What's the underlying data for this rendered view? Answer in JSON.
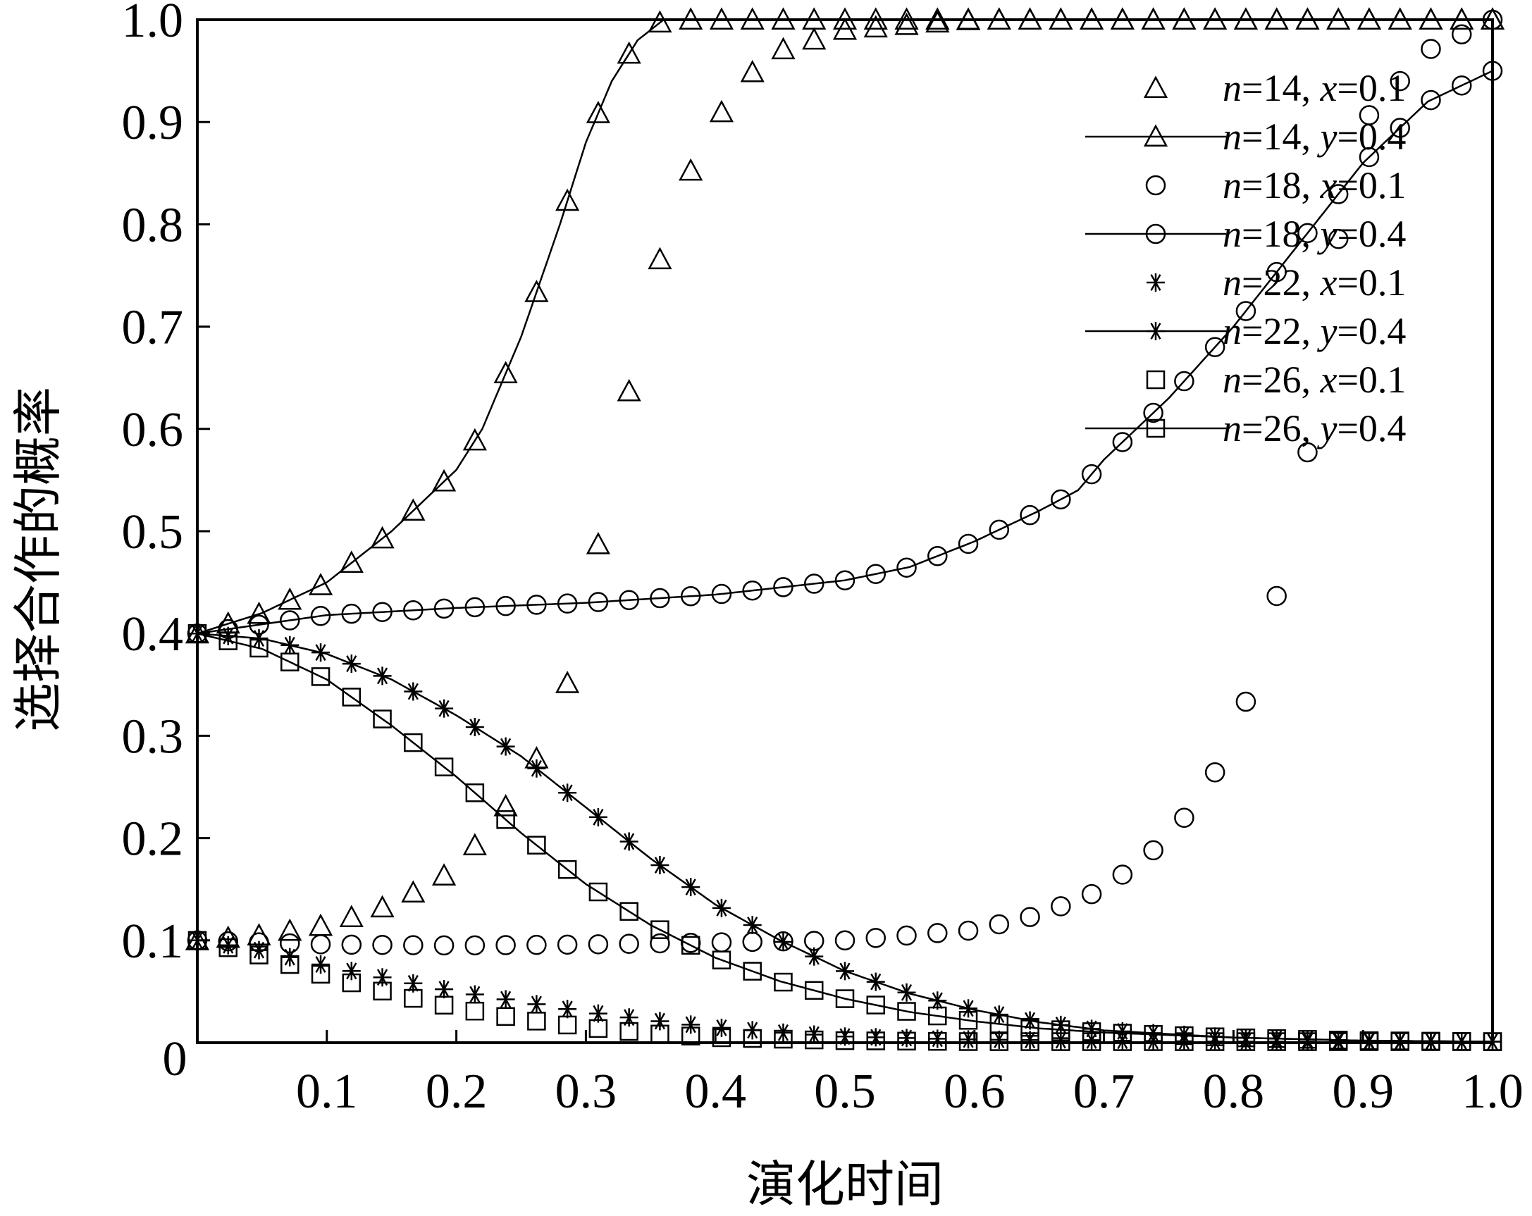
{
  "chart_data": {
    "type": "line",
    "xlabel": "演化时间",
    "ylabel": "选择合作的概率",
    "xlim": [
      0,
      1
    ],
    "ylim": [
      0,
      1
    ],
    "x_tick_labels": [
      "0.1",
      "0.2",
      "0.3",
      "0.4",
      "0.5",
      "0.6",
      "0.7",
      "0.8",
      "0.9",
      "1.0"
    ],
    "y_tick_labels": [
      "0.1",
      "0.2",
      "0.3",
      "0.4",
      "0.5",
      "0.6",
      "0.7",
      "0.8",
      "0.9",
      "1.0"
    ],
    "origin_label": "0",
    "grid": false,
    "legend_position": "top-right",
    "series": [
      {
        "name": "n=14, x=0.1",
        "legend": {
          "prefix": "n",
          "mid": "=14, ",
          "var": "x",
          "suffix": "=0.1"
        },
        "marker": "triangle",
        "line": false,
        "x": [
          0,
          0.05,
          0.1,
          0.15,
          0.2,
          0.25,
          0.28,
          0.3,
          0.32,
          0.34,
          0.36,
          0.38,
          0.4,
          0.42,
          0.45,
          0.5,
          0.6,
          0.7,
          0.8,
          0.9,
          1.0
        ],
        "y": [
          0.1,
          0.105,
          0.115,
          0.135,
          0.17,
          0.25,
          0.32,
          0.43,
          0.55,
          0.68,
          0.78,
          0.85,
          0.9,
          0.94,
          0.97,
          0.99,
          1.0,
          1.0,
          1.0,
          1.0,
          1.0
        ]
      },
      {
        "name": "n=14, y=0.4",
        "legend": {
          "prefix": "n",
          "mid": "=14, ",
          "var": "y",
          "suffix": "=0.4"
        },
        "marker": "triangle",
        "line": true,
        "x": [
          0,
          0.05,
          0.1,
          0.15,
          0.2,
          0.22,
          0.25,
          0.28,
          0.3,
          0.32,
          0.34,
          0.36,
          0.4,
          0.5,
          0.6,
          0.7,
          0.8,
          0.9,
          1.0
        ],
        "y": [
          0.4,
          0.42,
          0.45,
          0.5,
          0.56,
          0.6,
          0.69,
          0.8,
          0.88,
          0.94,
          0.98,
          1.0,
          1.0,
          1.0,
          1.0,
          1.0,
          1.0,
          1.0,
          1.0
        ]
      },
      {
        "name": "n=18, x=0.1",
        "legend": {
          "prefix": "n",
          "mid": "=18, ",
          "var": "x",
          "suffix": "=0.1"
        },
        "marker": "circle",
        "line": false,
        "x": [
          0,
          0.05,
          0.1,
          0.2,
          0.3,
          0.4,
          0.5,
          0.6,
          0.65,
          0.7,
          0.75,
          0.78,
          0.8,
          0.82,
          0.84,
          0.85,
          0.86,
          0.87,
          0.88,
          0.9,
          0.95,
          1.0
        ],
        "y": [
          0.1,
          0.098,
          0.096,
          0.095,
          0.096,
          0.098,
          0.1,
          0.11,
          0.125,
          0.15,
          0.2,
          0.25,
          0.3,
          0.37,
          0.47,
          0.52,
          0.6,
          0.68,
          0.78,
          0.9,
          0.97,
          1.0
        ]
      },
      {
        "name": "n=18, y=0.4",
        "legend": {
          "prefix": "n",
          "mid": "=18, ",
          "var": "y",
          "suffix": "=0.4"
        },
        "marker": "circle",
        "line": true,
        "x": [
          0,
          0.1,
          0.2,
          0.3,
          0.4,
          0.5,
          0.55,
          0.6,
          0.65,
          0.68,
          0.7,
          0.75,
          0.8,
          0.85,
          0.9,
          0.95,
          1.0
        ],
        "y": [
          0.4,
          0.418,
          0.425,
          0.43,
          0.438,
          0.452,
          0.465,
          0.49,
          0.52,
          0.54,
          0.57,
          0.63,
          0.7,
          0.78,
          0.86,
          0.92,
          0.95
        ]
      },
      {
        "name": "n=22, x=0.1",
        "legend": {
          "prefix": "n",
          "mid": "=22, ",
          "var": "x",
          "suffix": "=0.1"
        },
        "marker": "star",
        "line": false,
        "x": [
          0,
          0.05,
          0.1,
          0.15,
          0.2,
          0.25,
          0.3,
          0.35,
          0.4,
          0.45,
          0.5,
          0.6,
          0.7,
          0.8,
          0.9,
          1.0
        ],
        "y": [
          0.1,
          0.09,
          0.075,
          0.062,
          0.05,
          0.04,
          0.03,
          0.022,
          0.015,
          0.01,
          0.006,
          0.003,
          0.002,
          0.001,
          0.001,
          0.001
        ]
      },
      {
        "name": "n=22, y=0.4",
        "legend": {
          "prefix": "n",
          "mid": "=22, ",
          "var": "y",
          "suffix": "=0.4"
        },
        "marker": "star",
        "line": true,
        "x": [
          0,
          0.05,
          0.1,
          0.15,
          0.2,
          0.25,
          0.3,
          0.35,
          0.4,
          0.45,
          0.5,
          0.55,
          0.6,
          0.65,
          0.7,
          0.8,
          0.9,
          1.0
        ],
        "y": [
          0.4,
          0.395,
          0.38,
          0.355,
          0.32,
          0.28,
          0.23,
          0.18,
          0.135,
          0.1,
          0.07,
          0.048,
          0.032,
          0.02,
          0.012,
          0.005,
          0.002,
          0.001
        ]
      },
      {
        "name": "n=26, x=0.1",
        "legend": {
          "prefix": "n",
          "mid": "=26, ",
          "var": "x",
          "suffix": "=0.1"
        },
        "marker": "square",
        "line": false,
        "x": [
          0,
          0.05,
          0.1,
          0.15,
          0.2,
          0.25,
          0.3,
          0.35,
          0.4,
          0.5,
          0.6,
          0.7,
          0.8,
          0.9,
          1.0
        ],
        "y": [
          0.1,
          0.085,
          0.065,
          0.048,
          0.034,
          0.023,
          0.015,
          0.009,
          0.005,
          0.002,
          0.001,
          0.001,
          0.001,
          0.001,
          0.001
        ]
      },
      {
        "name": "n=26, y=0.4",
        "legend": {
          "prefix": "n",
          "mid": "=26, ",
          "var": "y",
          "suffix": "=0.4"
        },
        "marker": "square",
        "line": true,
        "x": [
          0,
          0.05,
          0.1,
          0.15,
          0.2,
          0.25,
          0.3,
          0.35,
          0.4,
          0.45,
          0.5,
          0.55,
          0.6,
          0.65,
          0.7,
          0.8,
          0.9,
          1.0
        ],
        "y": [
          0.4,
          0.385,
          0.355,
          0.31,
          0.26,
          0.205,
          0.155,
          0.115,
          0.083,
          0.06,
          0.043,
          0.03,
          0.021,
          0.014,
          0.01,
          0.005,
          0.002,
          0.001
        ]
      }
    ]
  }
}
